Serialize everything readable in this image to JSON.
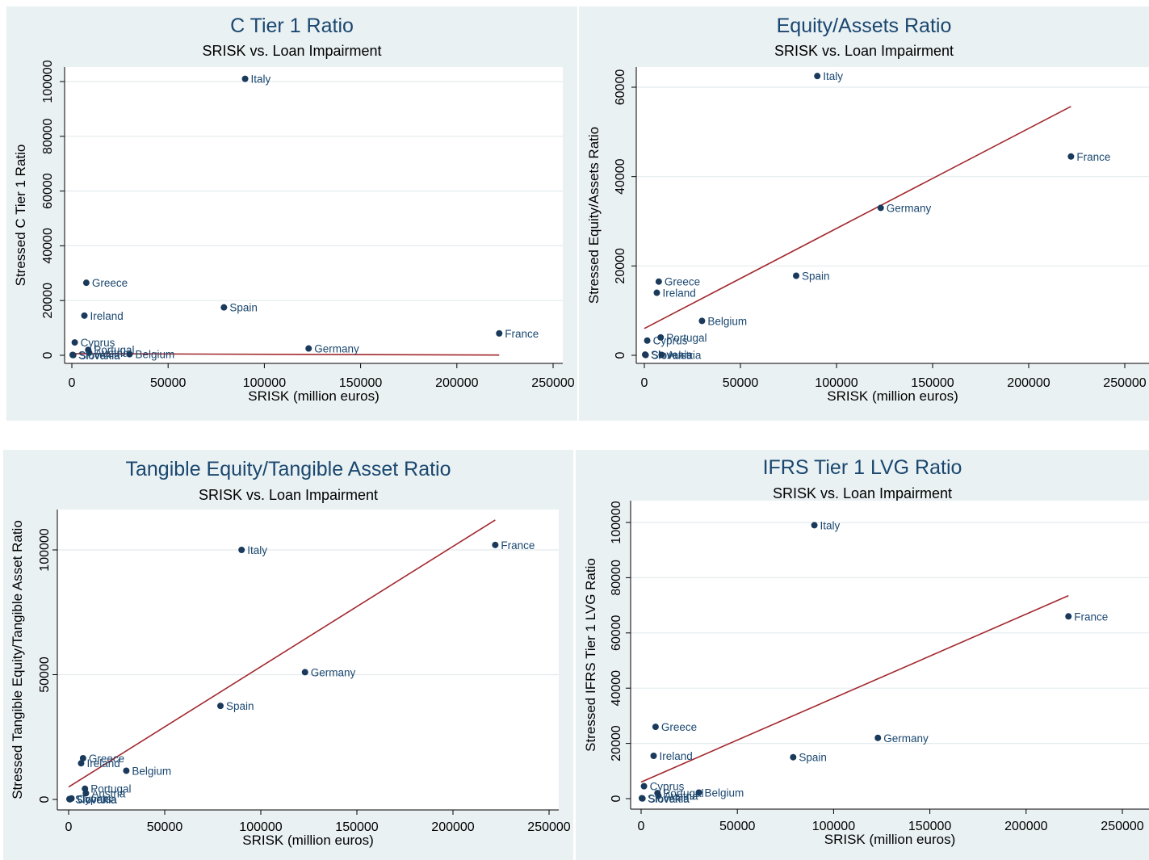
{
  "colors": {
    "panel_bg": "#eaf1f3",
    "plot_bg": "#ffffff",
    "grid": "#e4ebee",
    "marker": "#1a3a5c",
    "label": "#1a476f",
    "title": "#1a476f",
    "fit_line": "#a2282e"
  },
  "chart_data": [
    {
      "type": "scatter",
      "title": "C Tier 1 Ratio",
      "subtitle": "SRISK vs. Loan Impairment",
      "xlabel": "SRISK (million euros)",
      "ylabel": "Stressed C Tier 1 Ratio",
      "xlim": [
        0,
        250000
      ],
      "ylim": [
        0,
        100000
      ],
      "xticks": [
        0,
        50000,
        100000,
        150000,
        200000,
        250000
      ],
      "yticks": [
        0,
        20000,
        40000,
        60000,
        80000,
        100000
      ],
      "grid": true,
      "points": [
        {
          "label": "Italy",
          "x": 90000,
          "y": 101000
        },
        {
          "label": "Greece",
          "x": 7500,
          "y": 26500
        },
        {
          "label": "Ireland",
          "x": 6500,
          "y": 14500
        },
        {
          "label": "Spain",
          "x": 79000,
          "y": 17500
        },
        {
          "label": "France",
          "x": 222000,
          "y": 8000
        },
        {
          "label": "Cyprus",
          "x": 1500,
          "y": 4700
        },
        {
          "label": "Portugal",
          "x": 8500,
          "y": 2000
        },
        {
          "label": "Austria",
          "x": 9000,
          "y": 900
        },
        {
          "label": "Germany",
          "x": 123000,
          "y": 2500
        },
        {
          "label": "Belgium",
          "x": 30000,
          "y": 400
        },
        {
          "label": "Slovenia",
          "x": 400,
          "y": 150
        },
        {
          "label": "Slovakia",
          "x": 700,
          "y": 60
        }
      ],
      "fit": {
        "x": [
          0,
          222000
        ],
        "y": [
          600,
          100
        ]
      }
    },
    {
      "type": "scatter",
      "title": "Equity/Assets Ratio",
      "subtitle": "SRISK vs. Loan Impairment",
      "xlabel": "SRISK (million euros)",
      "ylabel": "Stressed Equity/Assets Ratio",
      "xlim": [
        0,
        250000
      ],
      "ylim": [
        0,
        60000
      ],
      "xticks": [
        0,
        50000,
        100000,
        150000,
        200000,
        250000
      ],
      "yticks": [
        0,
        20000,
        40000,
        60000
      ],
      "grid": true,
      "points": [
        {
          "label": "Italy",
          "x": 90000,
          "y": 62500
        },
        {
          "label": "France",
          "x": 222000,
          "y": 44500
        },
        {
          "label": "Germany",
          "x": 123000,
          "y": 33000
        },
        {
          "label": "Spain",
          "x": 79000,
          "y": 17800
        },
        {
          "label": "Greece",
          "x": 7500,
          "y": 16500
        },
        {
          "label": "Ireland",
          "x": 6500,
          "y": 14000
        },
        {
          "label": "Belgium",
          "x": 30000,
          "y": 7700
        },
        {
          "label": "Portugal",
          "x": 8500,
          "y": 4000
        },
        {
          "label": "Cyprus",
          "x": 1500,
          "y": 3300
        },
        {
          "label": "Slovenia",
          "x": 400,
          "y": 150
        },
        {
          "label": "Slovakia",
          "x": 700,
          "y": 60
        },
        {
          "label": "Austria",
          "x": 9000,
          "y": 100
        }
      ],
      "fit": {
        "x": [
          0,
          222000
        ],
        "y": [
          6000,
          55700
        ]
      }
    },
    {
      "type": "scatter",
      "title": "Tangible Equity/Tangible Asset Ratio",
      "subtitle": "SRISK vs. Loan Impairment",
      "xlabel": "SRISK (million euros)",
      "ylabel": "Stressed Tangible Equity/Tangible Asset Ratio",
      "xlim": [
        0,
        250000
      ],
      "ylim": [
        0,
        100000
      ],
      "xticks": [
        0,
        50000,
        100000,
        150000,
        200000,
        250000
      ],
      "yticks": [
        0,
        50000,
        100000
      ],
      "grid": true,
      "points": [
        {
          "label": "France",
          "x": 222000,
          "y": 102000
        },
        {
          "label": "Italy",
          "x": 90000,
          "y": 100000
        },
        {
          "label": "Germany",
          "x": 123000,
          "y": 51000
        },
        {
          "label": "Spain",
          "x": 79000,
          "y": 37500
        },
        {
          "label": "Greece",
          "x": 7500,
          "y": 16500
        },
        {
          "label": "Ireland",
          "x": 6500,
          "y": 14500
        },
        {
          "label": "Belgium",
          "x": 30000,
          "y": 11500
        },
        {
          "label": "Portugal",
          "x": 8500,
          "y": 4300
        },
        {
          "label": "Austria",
          "x": 9000,
          "y": 2500
        },
        {
          "label": "Cyprus",
          "x": 1500,
          "y": 400
        },
        {
          "label": "Slovenia",
          "x": 400,
          "y": 150
        },
        {
          "label": "Slovakia",
          "x": 700,
          "y": 60
        }
      ],
      "fit": {
        "x": [
          0,
          222000
        ],
        "y": [
          5000,
          112000
        ]
      }
    },
    {
      "type": "scatter",
      "title": "IFRS Tier 1 LVG Ratio",
      "subtitle": "SRISK vs. Loan Impairment",
      "xlabel": "SRISK (million euros)",
      "ylabel": "Stressed IFRS Tier 1 LVG Ratio",
      "xlim": [
        0,
        250000
      ],
      "ylim": [
        0,
        100000
      ],
      "xticks": [
        0,
        50000,
        100000,
        150000,
        200000,
        250000
      ],
      "yticks": [
        0,
        20000,
        40000,
        60000,
        80000,
        100000
      ],
      "grid": true,
      "points": [
        {
          "label": "Italy",
          "x": 90000,
          "y": 99000
        },
        {
          "label": "France",
          "x": 222000,
          "y": 66000
        },
        {
          "label": "Greece",
          "x": 7500,
          "y": 26000
        },
        {
          "label": "Germany",
          "x": 123000,
          "y": 22000
        },
        {
          "label": "Ireland",
          "x": 6500,
          "y": 15500
        },
        {
          "label": "Spain",
          "x": 79000,
          "y": 15000
        },
        {
          "label": "Cyprus",
          "x": 1500,
          "y": 4500
        },
        {
          "label": "Belgium",
          "x": 30000,
          "y": 2200
        },
        {
          "label": "Portugal",
          "x": 8500,
          "y": 2000
        },
        {
          "label": "Austria",
          "x": 9000,
          "y": 1000
        },
        {
          "label": "Slovenia",
          "x": 400,
          "y": 150
        },
        {
          "label": "Slovakia",
          "x": 700,
          "y": 60
        }
      ],
      "fit": {
        "x": [
          0,
          222000
        ],
        "y": [
          6000,
          73500
        ]
      }
    }
  ]
}
